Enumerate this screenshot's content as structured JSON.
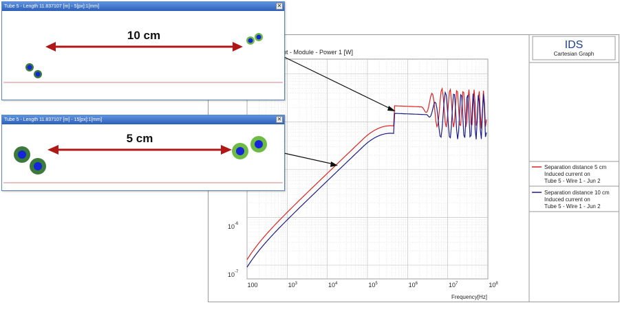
{
  "window_10cm": {
    "title": "Tube 5 - Length 11.837107 [m] - 5[px]:1[mm]",
    "close_glyph": "✕",
    "distance_label": "10 cm"
  },
  "window_5cm": {
    "title": "Tube 5 - Length 11.837107 [m] - 15[px]:1[mm]",
    "close_glyph": "✕",
    "distance_label": "5 cm"
  },
  "graph": {
    "logo": "IDS",
    "logo_subtitle": "Cartesian Graph",
    "title": "nt - Module - Power 1 [W]",
    "xlabel": "Frequency[Hz]"
  },
  "legend": {
    "entries": [
      {
        "line1": "Separation distance 5 cm",
        "line2": "Induced current on",
        "line3": "Tube 5 - Wire 1 - Jun 2",
        "color": "#e02020"
      },
      {
        "line1": "Separation distance 10 cm",
        "line2": "Induced current on",
        "line3": "Tube 5 - Wire 1 - Jun 2",
        "color": "#1a1a8c"
      }
    ]
  },
  "chart_data": {
    "type": "line",
    "title": "nt - Module - Power 1 [W]",
    "xlabel": "Frequency[Hz]",
    "ylabel": "",
    "x_scale": "log",
    "y_scale": "log",
    "xlim": [
      100,
      100000000
    ],
    "x_ticks": [
      {
        "base": "100",
        "exp": ""
      },
      {
        "base": "10",
        "exp": "3"
      },
      {
        "base": "10",
        "exp": "4"
      },
      {
        "base": "10",
        "exp": "5"
      },
      {
        "base": "10",
        "exp": "6"
      },
      {
        "base": "10",
        "exp": "7"
      },
      {
        "base": "10",
        "exp": "8"
      }
    ],
    "y_ticks": [
      {
        "base": "10",
        "exp": "-6"
      },
      {
        "base": "10",
        "exp": "-7"
      }
    ],
    "grid": true,
    "series": [
      {
        "name": "Separation distance 5 cm",
        "color": "#e02020"
      },
      {
        "name": "Separation distance 10 cm",
        "color": "#1a1a8c"
      }
    ]
  }
}
